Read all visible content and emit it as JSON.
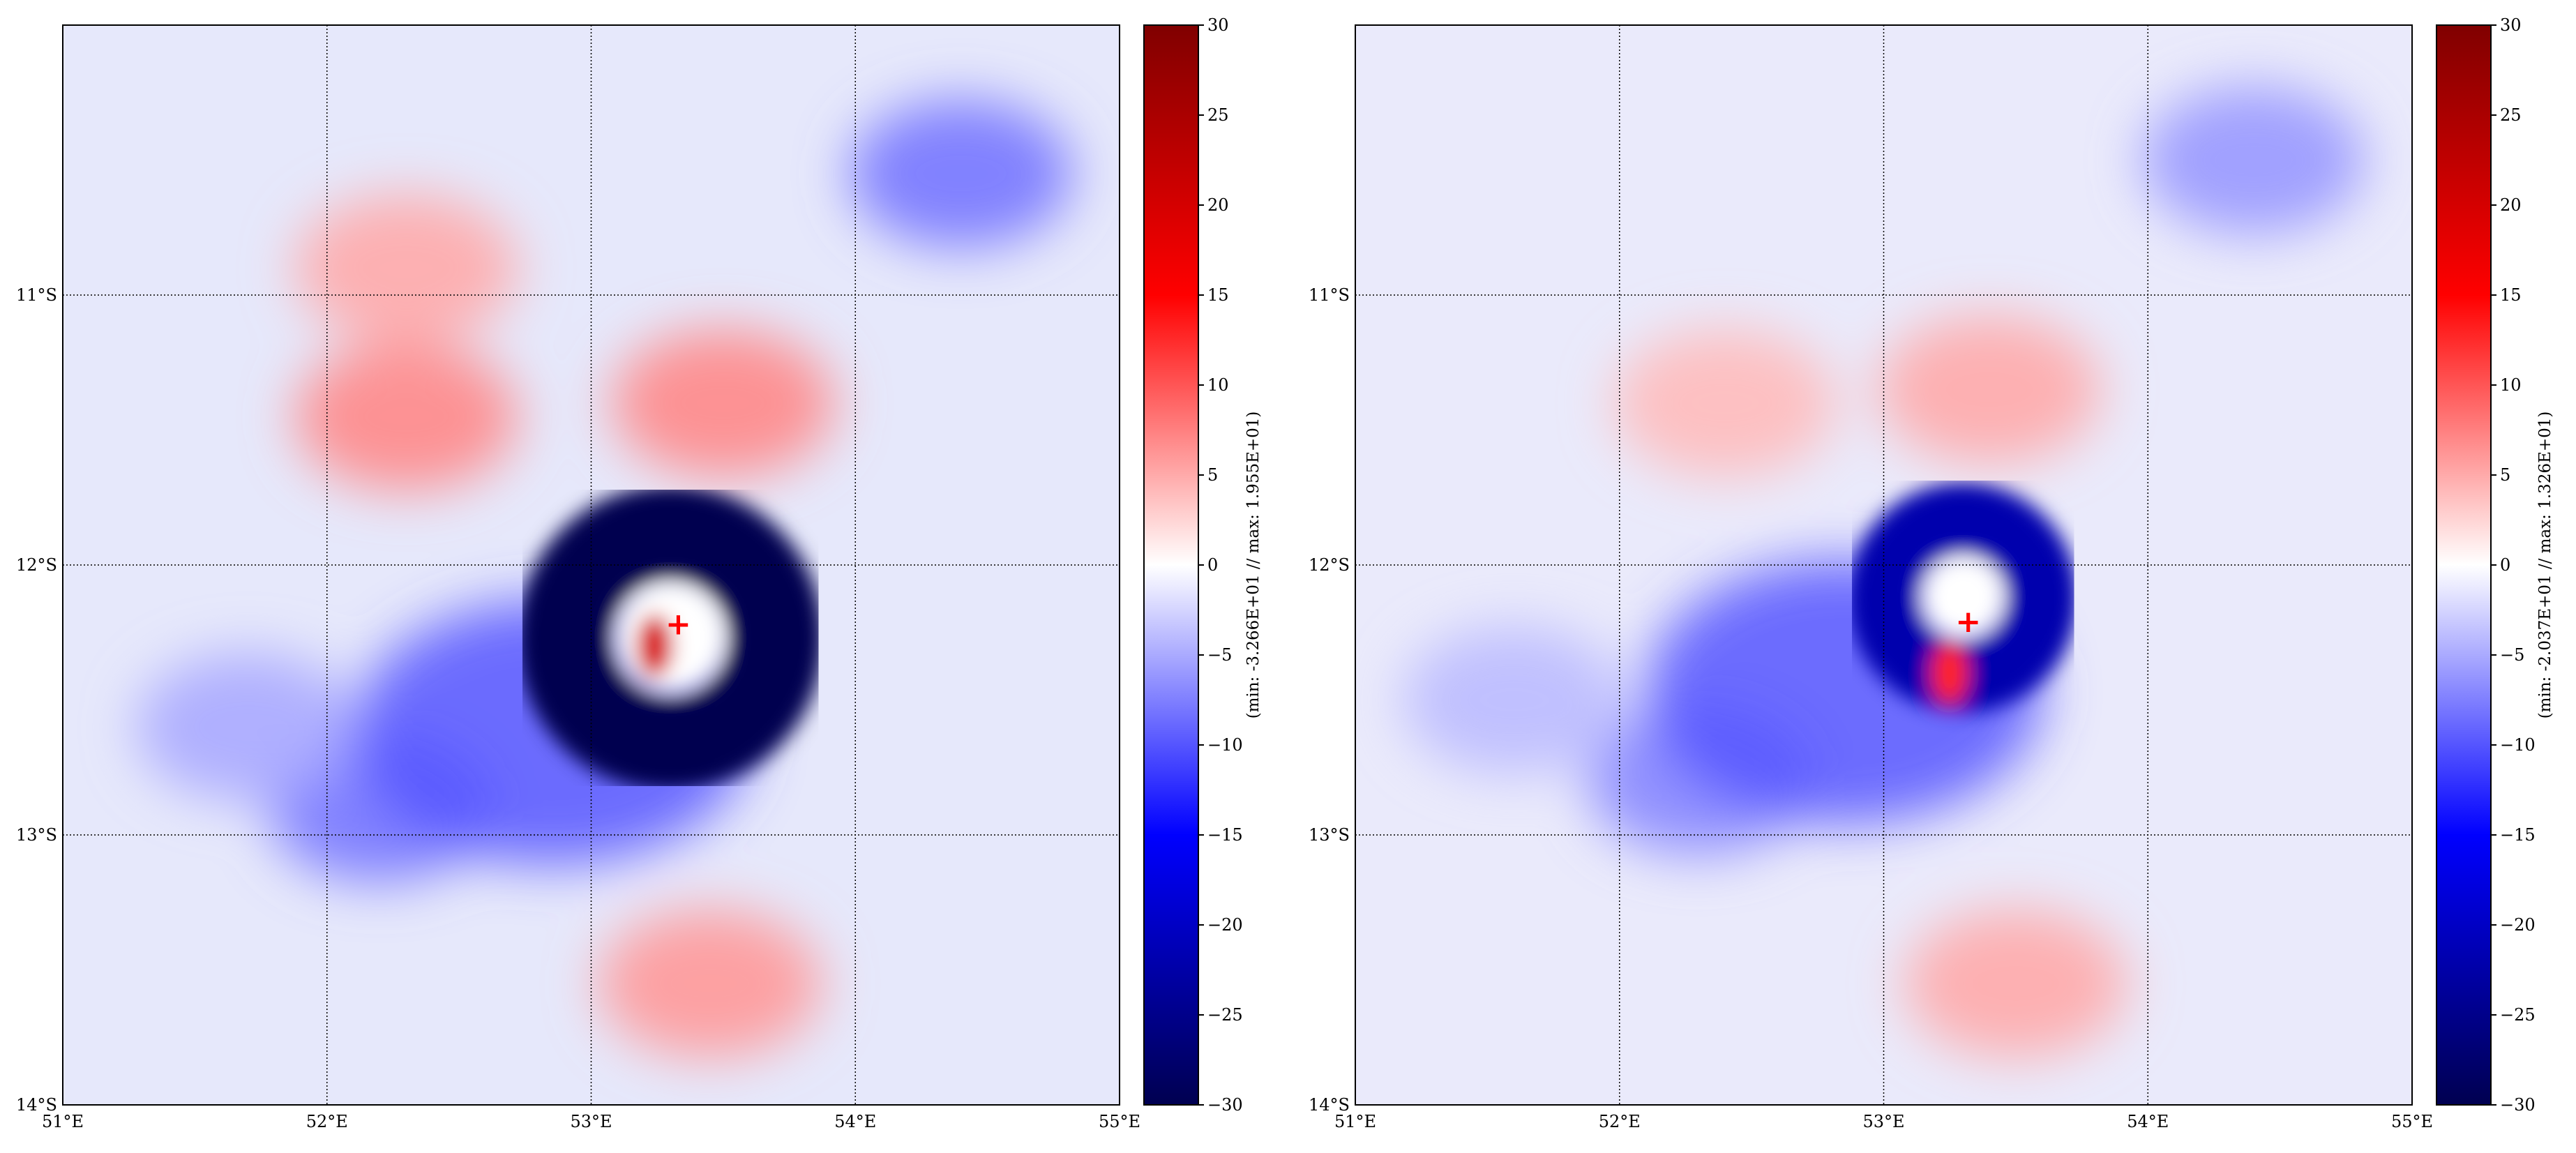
{
  "maps": [
    {
      "id": "left",
      "lon_range": [
        51,
        55
      ],
      "lat_range": [
        -14,
        -10
      ],
      "lon_ticks": [
        "51°E",
        "52°E",
        "53°E",
        "54°E",
        "55°E"
      ],
      "lat_ticks": [
        "11°S",
        "12°S",
        "13°S",
        "14°S"
      ],
      "colorbar": {
        "cmap": "seismic",
        "range": [
          -30,
          30
        ],
        "ticks": [
          "30",
          "25",
          "20",
          "15",
          "10",
          "5",
          "0",
          "−5",
          "−10",
          "−15",
          "−20",
          "−25",
          "−30"
        ],
        "label": "(min: -3.266E+01 // max:  1.955E+01)"
      },
      "marker": {
        "symbol": "+",
        "color": "#ff0000",
        "lon": 53.33,
        "lat": -12.22
      },
      "field": {
        "min": -32.66,
        "max": 19.55,
        "vortex": {
          "lon": 53.3,
          "lat": -12.27,
          "ring_radius_deg": 0.4,
          "intensity": -30
        },
        "warm_core": {
          "lon": 53.24,
          "lat": -12.3,
          "intensity": 19.5
        },
        "features": [
          {
            "lon": 53.45,
            "lat": -13.55,
            "value": 6
          },
          {
            "lon": 53.5,
            "lat": -11.4,
            "value": 7
          },
          {
            "lon": 52.3,
            "lat": -11.45,
            "value": 7
          },
          {
            "lon": 52.3,
            "lat": -10.9,
            "value": 5
          },
          {
            "lon": 54.4,
            "lat": -10.55,
            "value": -8
          },
          {
            "lon": 52.2,
            "lat": -12.9,
            "value": -8
          },
          {
            "lon": 51.7,
            "lat": -12.6,
            "value": -5
          }
        ]
      }
    },
    {
      "id": "right",
      "lon_range": [
        51,
        55
      ],
      "lat_range": [
        -14,
        -10
      ],
      "lon_ticks": [
        "51°E",
        "52°E",
        "53°E",
        "54°E",
        "55°E"
      ],
      "lat_ticks": [
        "11°S",
        "12°S",
        "13°S",
        "14°S"
      ],
      "colorbar": {
        "cmap": "seismic",
        "range": [
          -30,
          30
        ],
        "ticks": [
          "30",
          "25",
          "20",
          "15",
          "10",
          "5",
          "0",
          "−5",
          "−10",
          "−15",
          "−20",
          "−25",
          "−30"
        ],
        "label": "(min: -2.037E+01 // max:  1.326E+01)"
      },
      "marker": {
        "symbol": "+",
        "color": "#ff0000",
        "lon": 53.32,
        "lat": -12.21
      },
      "field": {
        "min": -20.37,
        "max": 13.26,
        "vortex": {
          "lon": 53.3,
          "lat": -12.12,
          "ring_radius_deg": 0.3,
          "intensity": -22
        },
        "warm_core": {
          "lon": 53.25,
          "lat": -12.4,
          "intensity": 13
        },
        "features": [
          {
            "lon": 53.5,
            "lat": -13.55,
            "value": 5
          },
          {
            "lon": 53.4,
            "lat": -11.35,
            "value": 5
          },
          {
            "lon": 52.4,
            "lat": -11.4,
            "value": 4
          },
          {
            "lon": 54.4,
            "lat": -10.5,
            "value": -6
          },
          {
            "lon": 52.3,
            "lat": -12.8,
            "value": -7
          },
          {
            "lon": 51.6,
            "lat": -12.5,
            "value": -4
          }
        ]
      }
    }
  ]
}
